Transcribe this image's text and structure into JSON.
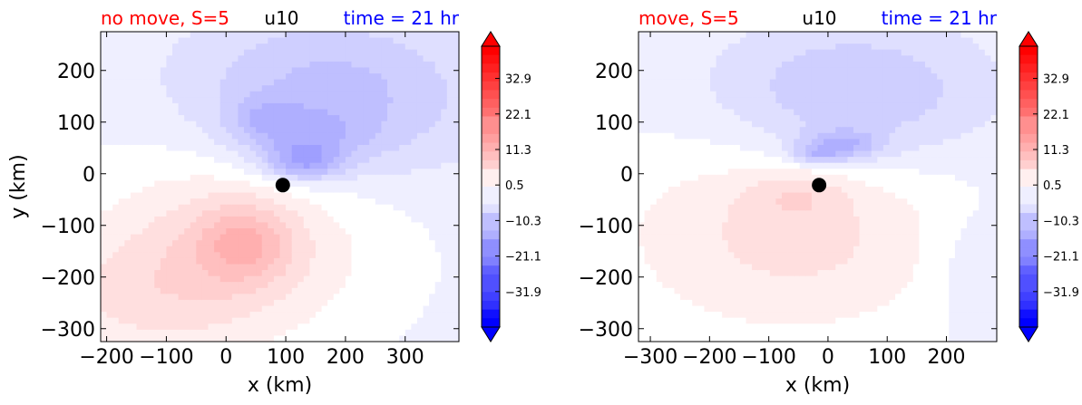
{
  "chart_data": [
    {
      "type": "heatmap",
      "title_left": "no move, S=5",
      "title_center": "u10",
      "title_right": "time = 21 hr",
      "xlabel": "x (km)",
      "ylabel": "y (km)",
      "xlim": [
        -210,
        390
      ],
      "ylim": [
        -325,
        275
      ],
      "xticks": [
        -200,
        -100,
        0,
        100,
        200,
        300
      ],
      "yticks": [
        -300,
        -200,
        -100,
        0,
        100,
        200
      ],
      "xtick_labels": [
        "−200",
        "−100",
        "0",
        "100",
        "200",
        "300"
      ],
      "ytick_labels": [
        "−300",
        "−200",
        "−100",
        "0",
        "100",
        "200"
      ],
      "center_marker": {
        "x": 95,
        "y": -22
      },
      "fields": [
        {
          "kind": "base",
          "value": -2
        },
        {
          "kind": "blob",
          "x": 170,
          "y": 150,
          "rx": 250,
          "ry": 160,
          "value": -9
        },
        {
          "kind": "blob",
          "x": 130,
          "y": 70,
          "rx": 110,
          "ry": 55,
          "value": -6
        },
        {
          "kind": "blob",
          "x": 130,
          "y": 20,
          "rx": 65,
          "ry": 35,
          "value": -10
        },
        {
          "kind": "blob",
          "x": 60,
          "y": 110,
          "rx": 60,
          "ry": 40,
          "value": -4
        },
        {
          "kind": "blob",
          "x": 20,
          "y": -120,
          "rx": 230,
          "ry": 200,
          "value": 7
        },
        {
          "kind": "blob",
          "x": 30,
          "y": -135,
          "rx": 80,
          "ry": 75,
          "value": 8
        },
        {
          "kind": "blob",
          "x": -150,
          "y": -240,
          "rx": 200,
          "ry": 130,
          "value": 5
        }
      ]
    },
    {
      "type": "heatmap",
      "title_left": "move, S=5",
      "title_center": "u10",
      "title_right": "time = 21 hr",
      "xlabel": "x (km)",
      "ylabel": "",
      "xlim": [
        -320,
        285
      ],
      "ylim": [
        -325,
        275
      ],
      "xticks": [
        -300,
        -200,
        -100,
        0,
        100,
        200
      ],
      "yticks": [
        -300,
        -200,
        -100,
        0,
        100,
        200
      ],
      "xtick_labels": [
        "−300",
        "−200",
        "−100",
        "0",
        "100",
        "200"
      ],
      "ytick_labels": [
        "−300",
        "−200",
        "−100",
        "0",
        "100",
        "200"
      ],
      "center_marker": {
        "x": -15,
        "y": -22
      },
      "fields": [
        {
          "kind": "base",
          "value": -2
        },
        {
          "kind": "blob",
          "x": 40,
          "y": 150,
          "rx": 230,
          "ry": 140,
          "value": -8
        },
        {
          "kind": "blob",
          "x": 20,
          "y": 55,
          "rx": 70,
          "ry": 30,
          "value": -9
        },
        {
          "kind": "blob",
          "x": -20,
          "y": 35,
          "rx": 45,
          "ry": 18,
          "value": -6
        },
        {
          "kind": "blob",
          "x": -60,
          "y": -120,
          "rx": 300,
          "ry": 200,
          "value": 7
        },
        {
          "kind": "blob",
          "x": -50,
          "y": -40,
          "rx": 90,
          "ry": 50,
          "value": 4
        },
        {
          "kind": "blob",
          "x": 250,
          "y": -180,
          "rx": 80,
          "ry": 120,
          "value": -3
        }
      ]
    }
  ],
  "colorbar": {
    "levels": [
      -42.7,
      42.7
    ],
    "ticks": [
      32.9,
      22.1,
      11.3,
      0.5,
      -10.3,
      -21.1,
      -31.9
    ],
    "tick_labels": [
      "32.9",
      "22.1",
      "11.3",
      "0.5",
      "−10.3",
      "−21.1",
      "−31.9"
    ],
    "extend": "both",
    "colormap": "bwr",
    "colors": {
      "low": "#0000ff",
      "mid": "#ffffff",
      "high": "#ff0000"
    }
  },
  "colors": {
    "title_left": "#ff0000",
    "title_center": "#000000",
    "title_right": "#0000ff",
    "marker": "#000000"
  }
}
